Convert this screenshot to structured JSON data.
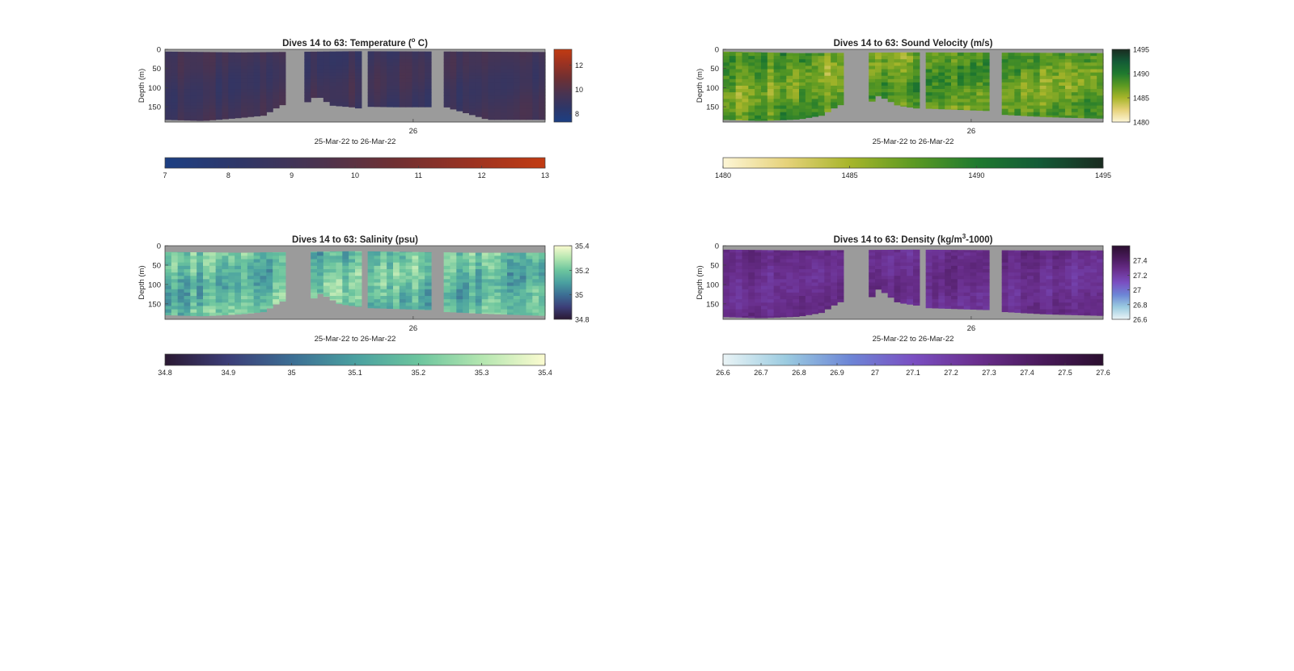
{
  "figure": {
    "background": "#ffffff",
    "nodata_color": "#9b9b9b"
  },
  "chart_data": [
    {
      "type": "heatmap",
      "title_main": "Dives 14 to 63: Temperature (",
      "title_sup": "o",
      "title_tail": " C)",
      "ylabel": "Depth (m)",
      "xtick": "26",
      "xlabel": "25-Mar-22 to 26-Mar-22",
      "yticks": [
        0,
        50,
        100,
        150
      ],
      "ylim": [
        0,
        190
      ],
      "side_colorbar": {
        "ticks": [
          8,
          10,
          12
        ],
        "range": [
          7.3,
          13.3
        ]
      },
      "bottom_colorbar": {
        "ticks": [
          7,
          8,
          9,
          10,
          11,
          12,
          13
        ],
        "range": [
          7,
          13
        ]
      },
      "colormap": [
        "#1c3f83",
        "#2f3667",
        "#4a3350",
        "#6e3033",
        "#9a3222",
        "#c23b12"
      ],
      "field": {
        "base": 8.9,
        "variation": 0.5,
        "quantize": false
      },
      "gaps": [
        [
          0.32,
          0.36
        ],
        [
          0.52,
          0.54
        ],
        [
          0.7,
          0.74
        ]
      ],
      "seafloor": [
        [
          0,
          183
        ],
        [
          0.1,
          186
        ],
        [
          0.2,
          178
        ],
        [
          0.26,
          172
        ],
        [
          0.3,
          148
        ],
        [
          0.32,
          140
        ],
        [
          0.36,
          147
        ],
        [
          0.4,
          120
        ],
        [
          0.44,
          146
        ],
        [
          0.49,
          150
        ],
        [
          0.52,
          155
        ],
        [
          0.54,
          149
        ],
        [
          0.6,
          150
        ],
        [
          0.7,
          150
        ],
        [
          0.74,
          150
        ],
        [
          0.85,
          183
        ],
        [
          1,
          183
        ]
      ],
      "top_gap": [
        [
          0,
          6
        ],
        [
          0.2,
          8
        ],
        [
          0.5,
          5
        ],
        [
          0.8,
          6
        ],
        [
          1,
          7
        ]
      ]
    },
    {
      "type": "heatmap",
      "title_main": "Dives 14 to 63: Sound Velocity (m/s)",
      "title_sup": "",
      "title_tail": "",
      "ylabel": "Depth (m)",
      "xtick": "26",
      "xlabel": "25-Mar-22 to 26-Mar-22",
      "yticks": [
        0,
        50,
        100,
        150
      ],
      "ylim": [
        0,
        190
      ],
      "side_colorbar": {
        "ticks": [
          1480,
          1485,
          1490,
          1495
        ],
        "range": [
          1480,
          1495
        ]
      },
      "bottom_colorbar": {
        "ticks": [
          1480,
          1485,
          1490,
          1495
        ],
        "range": [
          1480,
          1495
        ]
      },
      "colormap": [
        "#fdf6d6",
        "#e6d27a",
        "#a7b52a",
        "#5c9a22",
        "#1f7a2e",
        "#135a36",
        "#1a2b20"
      ],
      "field": {
        "base": 1487.2,
        "variation": 2.2,
        "quantize": true
      },
      "gaps": [
        [
          0.32,
          0.38
        ],
        [
          0.52,
          0.54
        ],
        [
          0.7,
          0.74
        ]
      ],
      "seafloor": [
        [
          0,
          183
        ],
        [
          0.1,
          186
        ],
        [
          0.2,
          182
        ],
        [
          0.26,
          172
        ],
        [
          0.3,
          148
        ],
        [
          0.32,
          140
        ],
        [
          0.38,
          145
        ],
        [
          0.41,
          120
        ],
        [
          0.46,
          146
        ],
        [
          0.52,
          155
        ],
        [
          0.54,
          154
        ],
        [
          0.7,
          160
        ],
        [
          0.74,
          170
        ],
        [
          0.85,
          176
        ],
        [
          1,
          180
        ]
      ],
      "top_gap": [
        [
          0,
          6
        ],
        [
          0.2,
          10
        ],
        [
          0.5,
          8
        ],
        [
          0.8,
          9
        ],
        [
          1,
          10
        ]
      ]
    },
    {
      "type": "heatmap",
      "title_main": "Dives 14 to 63: Salinity (psu)",
      "title_sup": "",
      "title_tail": "",
      "ylabel": "Depth (m)",
      "xtick": "26",
      "xlabel": "25-Mar-22 to 26-Mar-22",
      "yticks": [
        0,
        50,
        100,
        150
      ],
      "ylim": [
        0,
        190
      ],
      "side_colorbar": {
        "ticks": [
          34.8,
          35,
          35.2,
          35.4
        ],
        "range": [
          34.8,
          35.4
        ]
      },
      "bottom_colorbar": {
        "ticks": [
          34.8,
          34.9,
          35,
          35.1,
          35.2,
          35.3,
          35.4
        ],
        "range": [
          34.8,
          35.4
        ]
      },
      "colormap": [
        "#2b1933",
        "#3c3e78",
        "#3c6e94",
        "#4aa0a0",
        "#6cc59e",
        "#b4e6b0",
        "#fbfbd0"
      ],
      "field": {
        "base": 35.18,
        "variation": 0.09,
        "quantize": true
      },
      "gaps": [
        [
          0.32,
          0.38
        ],
        [
          0.52,
          0.54
        ],
        [
          0.7,
          0.74
        ]
      ],
      "seafloor": [
        [
          0,
          178
        ],
        [
          0.1,
          181
        ],
        [
          0.2,
          176
        ],
        [
          0.26,
          170
        ],
        [
          0.3,
          145
        ],
        [
          0.32,
          140
        ],
        [
          0.38,
          143
        ],
        [
          0.41,
          122
        ],
        [
          0.46,
          150
        ],
        [
          0.52,
          158
        ],
        [
          0.54,
          160
        ],
        [
          0.7,
          165
        ],
        [
          0.74,
          170
        ],
        [
          0.85,
          175
        ],
        [
          1,
          180
        ]
      ],
      "top_gap": [
        [
          0,
          16
        ],
        [
          0.2,
          18
        ],
        [
          0.5,
          14
        ],
        [
          0.8,
          18
        ],
        [
          1,
          18
        ]
      ]
    },
    {
      "type": "heatmap",
      "title_main": "Dives 14 to 63: Density (kg/m",
      "title_sup": "3",
      "title_tail": "-1000)",
      "ylabel": "Depth (m)",
      "xtick": "26",
      "xlabel": "25-Mar-22 to 26-Mar-22",
      "yticks": [
        0,
        50,
        100,
        150
      ],
      "ylim": [
        0,
        190
      ],
      "side_colorbar": {
        "ticks": [
          26.6,
          26.8,
          27,
          27.2,
          27.4
        ],
        "range": [
          26.6,
          27.6
        ]
      },
      "bottom_colorbar": {
        "ticks": [
          26.6,
          26.7,
          26.8,
          26.9,
          27,
          27.1,
          27.2,
          27.3,
          27.4,
          27.5,
          27.6
        ],
        "range": [
          26.6,
          27.6
        ]
      },
      "colormap": [
        "#eaf4f6",
        "#9bcbe0",
        "#6d86d6",
        "#7a4fc2",
        "#6a2f8e",
        "#4a1a5c",
        "#2b0f2f"
      ],
      "field": {
        "base": 27.27,
        "variation": 0.06,
        "quantize": true
      },
      "gaps": [
        [
          0.32,
          0.38
        ],
        [
          0.52,
          0.54
        ],
        [
          0.7,
          0.74
        ]
      ],
      "seafloor": [
        [
          0,
          183
        ],
        [
          0.1,
          186
        ],
        [
          0.2,
          182
        ],
        [
          0.26,
          172
        ],
        [
          0.3,
          148
        ],
        [
          0.32,
          140
        ],
        [
          0.38,
          145
        ],
        [
          0.41,
          110
        ],
        [
          0.46,
          146
        ],
        [
          0.52,
          155
        ],
        [
          0.54,
          160
        ],
        [
          0.7,
          165
        ],
        [
          0.74,
          170
        ],
        [
          0.85,
          176
        ],
        [
          1,
          180
        ]
      ],
      "top_gap": [
        [
          0,
          10
        ],
        [
          0.2,
          12
        ],
        [
          0.5,
          10
        ],
        [
          0.8,
          12
        ],
        [
          1,
          12
        ]
      ]
    }
  ]
}
